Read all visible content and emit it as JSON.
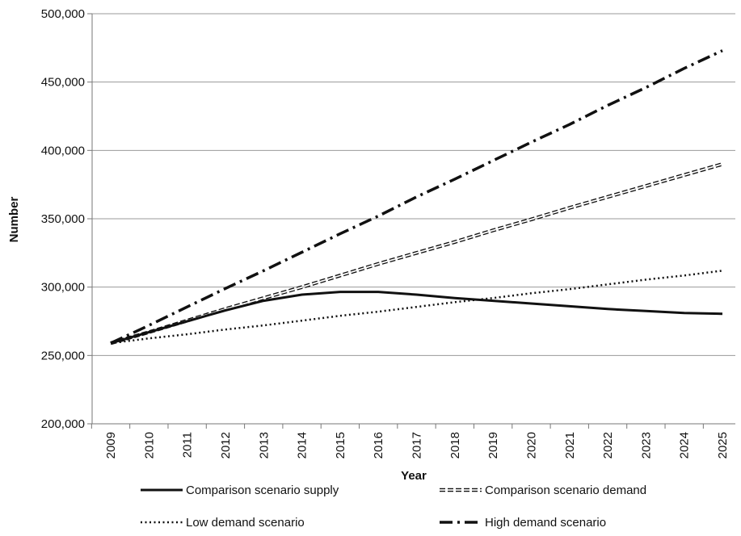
{
  "chart_data": {
    "type": "line",
    "x": [
      2009,
      2010,
      2011,
      2012,
      2013,
      2014,
      2015,
      2016,
      2017,
      2018,
      2019,
      2020,
      2021,
      2022,
      2023,
      2024,
      2025
    ],
    "x_tick_labels": [
      "2009",
      "2010",
      "2011",
      "2012",
      "2013",
      "2014",
      "2015",
      "2016",
      "2017",
      "2018",
      "2019",
      "2020",
      "2021",
      "2022",
      "2023",
      "2024",
      "2025"
    ],
    "xlabel": "Year",
    "ylabel": "Number",
    "ylim": [
      200000,
      500000
    ],
    "y_ticks": [
      200000,
      250000,
      300000,
      350000,
      400000,
      450000,
      500000
    ],
    "y_tick_labels": [
      "200,000",
      "250,000",
      "300,000",
      "350,000",
      "400,000",
      "450,000",
      "500,000"
    ],
    "grid": "horizontal",
    "legend_position": "bottom",
    "series": [
      {
        "name": "Comparison scenario supply",
        "style": "solid",
        "values": [
          259000,
          267000,
          275000,
          283000,
          290000,
          294500,
          296500,
          296500,
          294500,
          292000,
          290000,
          288000,
          286000,
          284000,
          282500,
          281000,
          280500
        ]
      },
      {
        "name": "Comparison scenario demand",
        "style": "double",
        "values": [
          259000,
          267000,
          275500,
          284000,
          292000,
          300000,
          308500,
          317000,
          325000,
          333000,
          341500,
          349500,
          358000,
          366000,
          374000,
          382000,
          390000
        ]
      },
      {
        "name": "Low demand scenario",
        "style": "dotted",
        "values": [
          259000,
          262500,
          265500,
          269000,
          272000,
          275500,
          279000,
          282000,
          285500,
          289000,
          292000,
          295500,
          298500,
          302000,
          305500,
          308500,
          312000
        ]
      },
      {
        "name": "High demand scenario",
        "style": "dashdot",
        "values": [
          259000,
          272000,
          285500,
          299000,
          312000,
          325500,
          339000,
          352000,
          366000,
          379000,
          392500,
          406000,
          419000,
          433000,
          446000,
          460000,
          473000
        ]
      }
    ]
  }
}
